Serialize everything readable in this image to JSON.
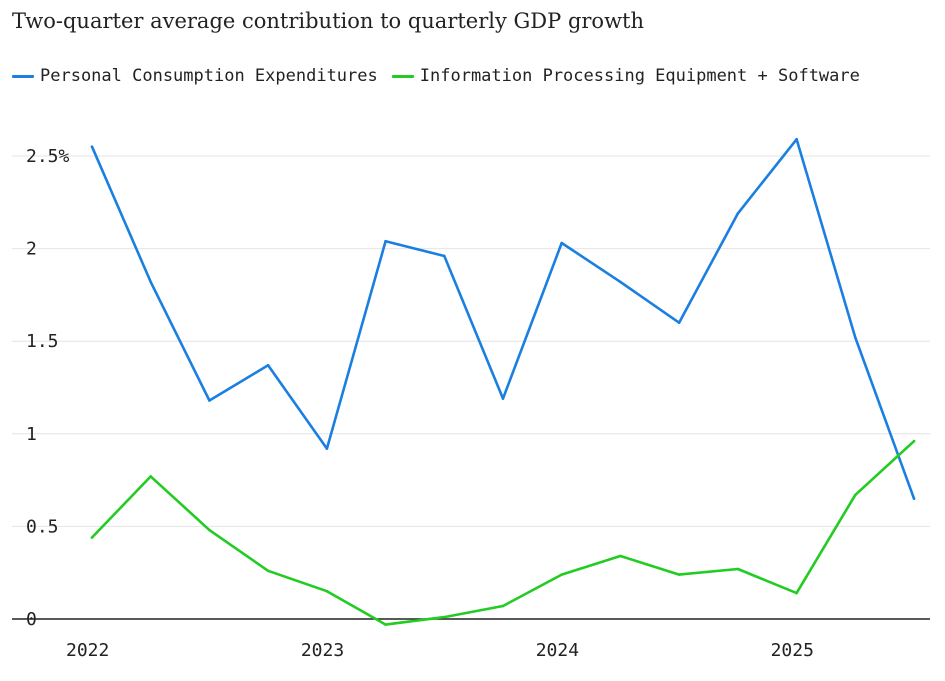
{
  "chart_data": {
    "type": "line",
    "title": "Two-quarter average contribution to quarterly GDP growth",
    "x": [
      "2022 Q1",
      "2022 Q2",
      "2022 Q3",
      "2022 Q4",
      "2023 Q1",
      "2023 Q2",
      "2023 Q3",
      "2023 Q4",
      "2024 Q1",
      "2024 Q2",
      "2024 Q3",
      "2024 Q4",
      "2025 Q1",
      "2025 Q2",
      "2025 Q3"
    ],
    "x_tick_labels": [
      "2022",
      "2023",
      "2024",
      "2025"
    ],
    "y_tick_labels": [
      "0",
      "0.5",
      "1",
      "1.5",
      "2",
      "2.5%"
    ],
    "ylim": [
      0,
      2.5
    ],
    "series": [
      {
        "name": "Personal Consumption Expenditures",
        "color": "#1a7fe0",
        "values": [
          2.55,
          1.82,
          1.18,
          1.37,
          0.92,
          2.04,
          1.96,
          1.19,
          2.03,
          1.82,
          1.6,
          2.19,
          2.59,
          1.52,
          0.65
        ]
      },
      {
        "name": "Information Processing Equipment + Software",
        "color": "#22cc22",
        "values": [
          0.44,
          0.77,
          0.48,
          0.26,
          0.15,
          -0.03,
          0.01,
          0.07,
          0.24,
          0.34,
          0.24,
          0.27,
          0.14,
          0.67,
          0.96
        ]
      }
    ],
    "grid": true,
    "legend_position": "top"
  }
}
